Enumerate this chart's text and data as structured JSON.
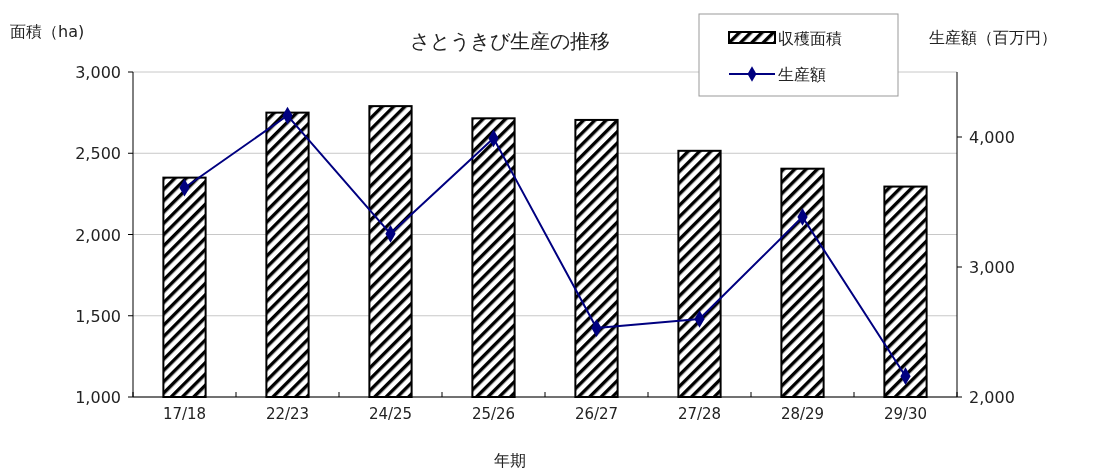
{
  "chart_data": {
    "type": "bar",
    "title": "さとうきび生産の推移",
    "xlabel": "年期",
    "ylabel": "面積（ha)",
    "y2label": "生産額（百万円）",
    "categories": [
      "17/18",
      "22/23",
      "24/25",
      "25/26",
      "26/27",
      "27/28",
      "28/29",
      "29/30"
    ],
    "series": [
      {
        "name": "収穫面積",
        "color": "#000000",
        "values": [
          2350,
          2750,
          2790,
          2715,
          2705,
          2515,
          2405,
          2295
        ]
      },
      {
        "name": "生産額",
        "type": "line",
        "axis": "y2",
        "color": "#000080",
        "marker": "diamond",
        "values": [
          3610,
          4165,
          3255,
          3990,
          2530,
          2600,
          3385,
          2160
        ]
      }
    ],
    "ylim": [
      1000,
      3000
    ],
    "yticks": [
      {
        "value": 1000,
        "label": "1,000"
      },
      {
        "value": 1500,
        "label": "1,500"
      },
      {
        "value": 2000,
        "label": "2,000"
      },
      {
        "value": 2500,
        "label": "2,500"
      },
      {
        "value": 3000,
        "label": "3,000"
      }
    ],
    "y2lim": [
      2000,
      4500
    ],
    "y2ticks": [
      {
        "value": 2000,
        "label": "2,000"
      },
      {
        "value": 3000,
        "label": "3,000"
      },
      {
        "value": 4000,
        "label": "4,000"
      }
    ],
    "grid": "y",
    "legend": "top right"
  }
}
